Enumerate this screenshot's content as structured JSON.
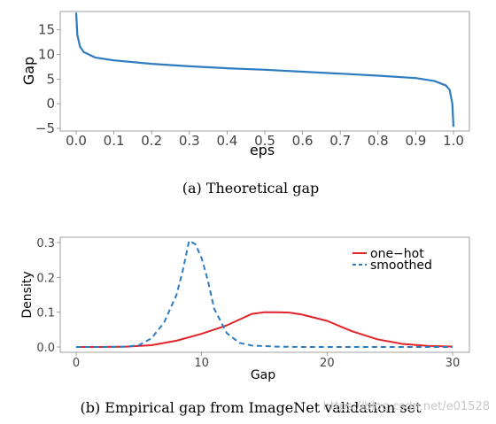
{
  "chart_data": [
    {
      "type": "line",
      "caption": "(a) Theoretical gap",
      "xlabel": "eps",
      "ylabel": "Gap",
      "xlim": [
        0.0,
        1.0
      ],
      "ylim": [
        -5,
        18
      ],
      "xticks": [
        "0.0",
        "0.1",
        "0.2",
        "0.3",
        "0.4",
        "0.5",
        "0.6",
        "0.7",
        "0.8",
        "0.9",
        "1.0"
      ],
      "yticks": [
        "−5",
        "0",
        "5",
        "10",
        "15"
      ],
      "grid": false,
      "series": [
        {
          "color": "#2f7bbf",
          "x": [
            0.0,
            0.003,
            0.01,
            0.02,
            0.05,
            0.1,
            0.2,
            0.3,
            0.4,
            0.5,
            0.6,
            0.7,
            0.8,
            0.9,
            0.95,
            0.98,
            0.99,
            0.997,
            1.0
          ],
          "y": [
            18.5,
            14,
            11.6,
            10.5,
            9.4,
            8.8,
            8.1,
            7.6,
            7.2,
            6.9,
            6.5,
            6.1,
            5.7,
            5.2,
            4.6,
            3.7,
            2.8,
            0,
            -4.7
          ]
        }
      ]
    },
    {
      "type": "line",
      "caption": "(b) Empirical gap from ImageNet validation set",
      "xlabel": "Gap",
      "ylabel": "Density",
      "xlim": [
        -1,
        30
      ],
      "ylim": [
        0,
        0.3
      ],
      "xticks": [
        "0",
        "10",
        "20",
        "30"
      ],
      "yticks": [
        "0.0",
        "0.1",
        "0.2",
        "0.3"
      ],
      "grid": false,
      "legend": "top-right",
      "series": [
        {
          "name": "one−hot",
          "color": "#e0242a",
          "style": "solid",
          "x": [
            0,
            2,
            4,
            6,
            8,
            10,
            12,
            14,
            15,
            16,
            17,
            18,
            20,
            22,
            24,
            26,
            28,
            30
          ],
          "y": [
            0.0,
            0.0,
            0.001,
            0.005,
            0.018,
            0.038,
            0.062,
            0.095,
            0.1,
            0.1,
            0.099,
            0.093,
            0.075,
            0.045,
            0.022,
            0.009,
            0.003,
            0.001
          ]
        },
        {
          "name": "smoothed",
          "color": "#2f7bbf",
          "style": "dashed",
          "x": [
            0,
            2,
            4,
            5,
            6,
            7,
            8,
            8.5,
            9,
            9.5,
            10,
            10.5,
            11,
            12,
            13,
            14,
            16,
            18,
            20,
            25,
            30
          ],
          "y": [
            0.0,
            0.0,
            0.001,
            0.005,
            0.025,
            0.07,
            0.15,
            0.22,
            0.305,
            0.295,
            0.255,
            0.19,
            0.11,
            0.04,
            0.012,
            0.004,
            0.001,
            0.0,
            0.0,
            0.0,
            0.0
          ]
        }
      ]
    }
  ],
  "watermark": "https://blog.csdn.net/e01528"
}
